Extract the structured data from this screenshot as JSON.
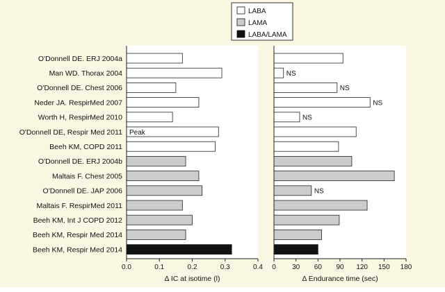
{
  "chart_data": {
    "type": "bar",
    "orientation": "horizontal",
    "grid": false,
    "legend_position": "top-center",
    "legend": [
      {
        "name": "LABA",
        "color": "#ffffff"
      },
      {
        "name": "LAMA",
        "color": "#cccccc"
      },
      {
        "name": "LABA/LAMA",
        "color": "#111111"
      }
    ],
    "categories": [
      "O'Donnell DE. ERJ 2004a",
      "Man WD. Thorax 2004",
      "O'Donnell DE. Chest 2006",
      "Neder JA. RespirMed 2007",
      "Worth H, RespirMed 2010",
      "O'Donnell DE, Respir Med 2011",
      "Beeh KM, COPD 2011",
      "O'Donnell DE. ERJ 2004b",
      "Maltais F. Chest 2005",
      "O'Donnell DE. JAP 2006",
      "Maltais F. RespirMed 2011",
      "Beeh KM, Int J COPD 2012",
      "Beeh KM, Respir Med 2014",
      "Beeh KM, Respir Med 2014"
    ],
    "groups": [
      "LABA",
      "LABA",
      "LABA",
      "LABA",
      "LABA",
      "LABA",
      "LABA",
      "LAMA",
      "LAMA",
      "LAMA",
      "LAMA",
      "LAMA",
      "LAMA",
      "LABA/LAMA"
    ],
    "panels": [
      {
        "xlabel": "Δ IC at isotime (l)",
        "xlim": [
          0,
          0.4
        ],
        "ticks": [
          "0.0",
          "0.1",
          "0.2",
          "0.3",
          "0.4"
        ],
        "values": [
          0.17,
          0.29,
          0.15,
          0.22,
          0.14,
          0.28,
          0.27,
          0.18,
          0.22,
          0.23,
          0.17,
          0.2,
          0.18,
          0.32
        ],
        "annotations": [
          "",
          "",
          "",
          "",
          "",
          "Peak",
          "",
          "",
          "",
          "",
          "",
          "",
          "",
          ""
        ]
      },
      {
        "xlabel": "Δ Endurance time (sec)",
        "xlim": [
          0,
          180
        ],
        "ticks": [
          "0",
          "30",
          "60",
          "90",
          "120",
          "150",
          "180"
        ],
        "values": [
          94,
          13,
          86,
          131,
          35,
          112,
          88,
          106,
          164,
          51,
          127,
          89,
          65,
          60
        ],
        "annotations": [
          "",
          "NS",
          "NS",
          "NS",
          "NS",
          "",
          "",
          "",
          "",
          "NS",
          "",
          "",
          "",
          ""
        ]
      }
    ]
  }
}
